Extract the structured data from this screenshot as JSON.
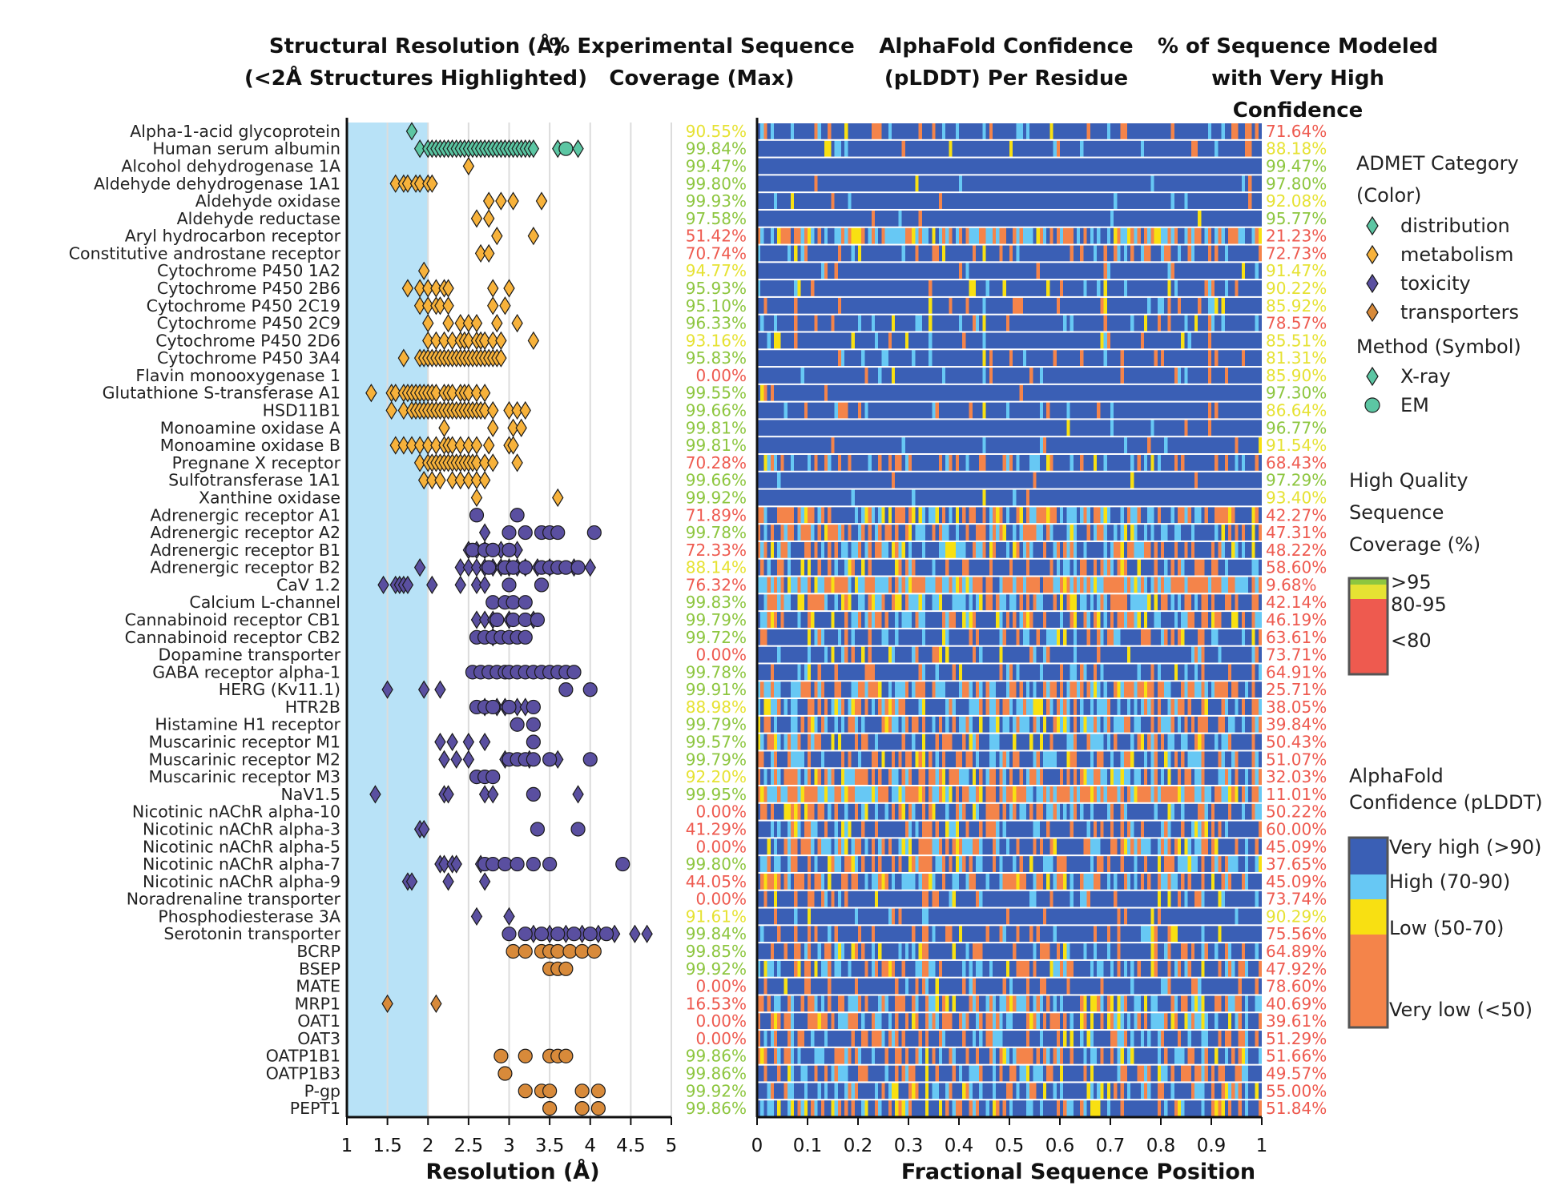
{
  "colors": {
    "distribution": "#5cc6a3",
    "metabolism": "#f7b23b",
    "toxicity": "#5a4fa0",
    "transporters": "#d88a3a",
    "very_high": "#3a5fb5",
    "high": "#67c8f4",
    "low": "#f8e012",
    "very_low": "#f4844a",
    "cov_high": "#8dc63f",
    "cov_mid": "#e6e233",
    "cov_low": "#ee5a4f",
    "highlight": "#b8e2f7"
  },
  "chart_data": [
    {
      "type": "scatter",
      "title": "Structural Resolution (Å)",
      "subtitle": "(<2Å Structures Highlighted)",
      "xlabel": "Resolution (Å)",
      "xlim": [
        1,
        5
      ],
      "xticks": [
        "1",
        "1.5",
        "2",
        "2.5",
        "3",
        "3.5",
        "4",
        "4.5",
        "5"
      ],
      "xtick_values": [
        1,
        1.5,
        2,
        2.5,
        3,
        3.5,
        4,
        4.5,
        5
      ],
      "highlight_range": [
        1,
        2
      ],
      "grid": true,
      "categories": [
        "Alpha-1-acid glycoprotein",
        "Human serum albumin",
        "Alcohol dehydrogenase 1A",
        "Aldehyde dehydrogenase 1A1",
        "Aldehyde oxidase",
        "Aldehyde reductase",
        "Aryl hydrocarbon receptor",
        "Constitutive androstane receptor",
        "Cytochrome P450 1A2",
        "Cytochrome P450 2B6",
        "Cytochrome P450 2C19",
        "Cytochrome P450 2C9",
        "Cytochrome P450 2D6",
        "Cytochrome P450 3A4",
        "Flavin monooxygenase 1",
        "Glutathione S-transferase A1",
        "HSD11B1",
        "Monoamine oxidase A",
        "Monoamine oxidase B",
        "Pregnane X receptor",
        "Sulfotransferase 1A1",
        "Xanthine oxidase",
        "Adrenergic receptor A1",
        "Adrenergic receptor A2",
        "Adrenergic receptor B1",
        "Adrenergic receptor B2",
        "CaV 1.2",
        "Calcium L-channel",
        "Cannabinoid receptor CB1",
        "Cannabinoid receptor CB2",
        "Dopamine transporter",
        "GABA receptor alpha-1",
        "HERG (Kv11.1)",
        "HTR2B",
        "Histamine H1 receptor",
        "Muscarinic receptor M1",
        "Muscarinic receptor M2",
        "Muscarinic receptor M3",
        "NaV1.5",
        "Nicotinic nAChR alpha-10",
        "Nicotinic nAChR alpha-3",
        "Nicotinic nAChR alpha-5",
        "Nicotinic nAChR alpha-7",
        "Nicotinic nAChR alpha-9",
        "Noradrenaline transporter",
        "Phosphodiesterase 3A",
        "Serotonin transporter",
        "BCRP",
        "BSEP",
        "MATE",
        "MRP1",
        "OAT1",
        "OAT3",
        "OATP1B1",
        "OATP1B3",
        "P-gp",
        "PEPT1"
      ],
      "admet_category": [
        "distribution",
        "distribution",
        "metabolism",
        "metabolism",
        "metabolism",
        "metabolism",
        "metabolism",
        "metabolism",
        "metabolism",
        "metabolism",
        "metabolism",
        "metabolism",
        "metabolism",
        "metabolism",
        "metabolism",
        "metabolism",
        "metabolism",
        "metabolism",
        "metabolism",
        "metabolism",
        "metabolism",
        "metabolism",
        "toxicity",
        "toxicity",
        "toxicity",
        "toxicity",
        "toxicity",
        "toxicity",
        "toxicity",
        "toxicity",
        "toxicity",
        "toxicity",
        "toxicity",
        "toxicity",
        "toxicity",
        "toxicity",
        "toxicity",
        "toxicity",
        "toxicity",
        "toxicity",
        "toxicity",
        "toxicity",
        "toxicity",
        "toxicity",
        "toxicity",
        "toxicity",
        "toxicity",
        "transporters",
        "transporters",
        "transporters",
        "transporters",
        "transporters",
        "transporters",
        "transporters",
        "transporters",
        "transporters",
        "transporters"
      ],
      "xray": [
        [
          1.8
        ],
        [
          1.9,
          2.0,
          2.05,
          2.1,
          2.15,
          2.2,
          2.25,
          2.3,
          2.35,
          2.4,
          2.45,
          2.5,
          2.55,
          2.6,
          2.65,
          2.7,
          2.75,
          2.8,
          2.85,
          2.9,
          2.95,
          3.0,
          3.05,
          3.1,
          3.15,
          3.2,
          3.25,
          3.3,
          3.6,
          3.85
        ],
        [
          2.5
        ],
        [
          1.6,
          1.7,
          1.75,
          1.85,
          1.9,
          2.0,
          2.05
        ],
        [
          2.75,
          2.9,
          3.05,
          3.4
        ],
        [
          2.6,
          2.75
        ],
        [
          2.85,
          3.3
        ],
        [
          2.65,
          2.75
        ],
        [
          1.95
        ],
        [
          1.75,
          1.9,
          2.0,
          2.1,
          2.2,
          2.25,
          2.8,
          3.0
        ],
        [
          1.9,
          2.0,
          2.1,
          2.15,
          2.25,
          2.8,
          2.95
        ],
        [
          2.0,
          2.25,
          2.4,
          2.5,
          2.6,
          2.85,
          3.1
        ],
        [
          2.0,
          2.1,
          2.2,
          2.3,
          2.4,
          2.45,
          2.5,
          2.6,
          2.65,
          2.7,
          2.8,
          2.9,
          3.3
        ],
        [
          1.7,
          1.9,
          1.95,
          2.0,
          2.05,
          2.1,
          2.15,
          2.2,
          2.25,
          2.3,
          2.35,
          2.4,
          2.45,
          2.5,
          2.55,
          2.6,
          2.65,
          2.7,
          2.75,
          2.8,
          2.85,
          2.9
        ],
        [],
        [
          1.3,
          1.55,
          1.6,
          1.7,
          1.75,
          1.8,
          1.85,
          1.9,
          1.95,
          2.0,
          2.05,
          2.1,
          2.2,
          2.25,
          2.3,
          2.4,
          2.45,
          2.5,
          2.6,
          2.7
        ],
        [
          1.55,
          1.7,
          1.8,
          1.85,
          1.9,
          1.95,
          2.0,
          2.05,
          2.1,
          2.15,
          2.2,
          2.25,
          2.3,
          2.35,
          2.4,
          2.45,
          2.5,
          2.55,
          2.6,
          2.65,
          2.7,
          2.8,
          3.0,
          3.1,
          3.2
        ],
        [
          2.2,
          2.8,
          3.05,
          3.15
        ],
        [
          1.6,
          1.7,
          1.8,
          1.9,
          2.0,
          2.1,
          2.2,
          2.25,
          2.3,
          2.4,
          2.5,
          2.6,
          2.75,
          3.0,
          3.05
        ],
        [
          1.9,
          2.0,
          2.05,
          2.1,
          2.15,
          2.2,
          2.25,
          2.3,
          2.35,
          2.4,
          2.45,
          2.5,
          2.55,
          2.6,
          2.7,
          2.8,
          3.1
        ],
        [
          1.95,
          2.05,
          2.15,
          2.3,
          2.4,
          2.5,
          2.6,
          2.7
        ],
        [
          2.6,
          3.6
        ],
        [],
        [
          2.7
        ],
        [
          2.5,
          2.6,
          2.7,
          2.9,
          3.1
        ],
        [
          1.9,
          2.4,
          2.5,
          2.6,
          2.7,
          2.8,
          2.9,
          3.0,
          3.1,
          3.2,
          3.35,
          3.5,
          3.8,
          4.0
        ],
        [
          1.45,
          1.6,
          1.65,
          1.7,
          1.75,
          2.05,
          2.4,
          2.6,
          2.7
        ],
        [],
        [
          2.6,
          2.7,
          2.8,
          3.0,
          3.3
        ],
        [
          2.8
        ],
        [],
        [],
        [
          1.5,
          1.95,
          2.15
        ],
        [
          2.7,
          2.85,
          2.95,
          3.1,
          3.2
        ],
        [],
        [
          2.15,
          2.3,
          2.5,
          2.7
        ],
        [
          2.2,
          2.35,
          2.5,
          2.95,
          3.25,
          3.6
        ],
        [],
        [
          1.35,
          2.2,
          2.25,
          2.7,
          2.8,
          3.85
        ],
        [],
        [
          1.9,
          1.95
        ],
        [],
        [
          2.15,
          2.2,
          2.3,
          2.35,
          2.65
        ],
        [
          1.75,
          1.8,
          2.25,
          2.7
        ],
        [],
        [
          2.6,
          3.0
        ],
        [
          3.3,
          3.5,
          3.7,
          3.9,
          4.1,
          4.3,
          4.55,
          4.7
        ],
        [],
        [],
        [],
        [
          1.5,
          2.1
        ],
        [],
        [],
        [],
        [],
        [],
        []
      ],
      "em": [
        [],
        [
          3.7
        ],
        [],
        [],
        [],
        [],
        [],
        [],
        [],
        [],
        [],
        [],
        [],
        [],
        [],
        [],
        [],
        [],
        [],
        [],
        [],
        [],
        [
          2.6,
          3.1
        ],
        [
          3.0,
          3.2,
          3.4,
          3.5,
          3.6,
          4.05
        ],
        [
          2.55,
          2.7,
          2.8,
          3.0
        ],
        [
          2.75,
          2.95,
          3.05,
          3.2,
          3.4,
          3.5,
          3.6,
          3.7,
          3.85
        ],
        [
          3.0,
          3.4
        ],
        [
          2.8,
          2.95,
          3.05,
          3.2
        ],
        [
          2.85,
          3.05,
          3.2,
          3.35
        ],
        [
          2.6,
          2.7,
          2.8,
          2.9,
          3.0,
          3.1,
          3.2
        ],
        [],
        [
          2.55,
          2.65,
          2.75,
          2.85,
          2.95,
          3.0,
          3.1,
          3.2,
          3.3,
          3.4,
          3.5,
          3.6,
          3.7,
          3.8
        ],
        [
          3.7,
          4.0
        ],
        [
          2.6,
          2.7,
          2.8,
          3.0,
          3.3
        ],
        [
          3.1,
          3.3
        ],
        [
          3.3
        ],
        [
          3.0,
          3.1,
          3.2,
          3.3,
          3.5,
          4.0
        ],
        [
          2.6,
          2.7,
          2.8
        ],
        [
          3.3
        ],
        [],
        [
          3.35,
          3.85
        ],
        [],
        [
          2.7,
          2.8,
          2.95,
          3.1,
          3.3,
          3.5,
          4.4
        ],
        [],
        [],
        [],
        [
          3.0,
          3.2,
          3.4,
          3.6,
          3.8,
          4.0,
          4.2
        ],
        [
          3.05,
          3.2,
          3.4,
          3.5,
          3.6,
          3.75,
          3.9,
          4.05
        ],
        [
          3.5,
          3.6,
          3.7
        ],
        [],
        [],
        [],
        [],
        [
          2.9,
          3.2,
          3.5,
          3.6,
          3.7
        ],
        [
          2.95
        ],
        [
          3.2,
          3.4,
          3.5,
          3.9,
          4.1
        ],
        [
          3.5,
          3.9,
          4.1
        ]
      ]
    },
    {
      "type": "table",
      "title": "% Experimental Sequence",
      "subtitle": "Coverage (Max)",
      "values": [
        "90.55%",
        "99.84%",
        "99.47%",
        "99.80%",
        "99.93%",
        "97.58%",
        "51.42%",
        "70.74%",
        "94.77%",
        "95.93%",
        "95.10%",
        "96.33%",
        "93.16%",
        "95.83%",
        "0.00%",
        "99.55%",
        "99.66%",
        "99.81%",
        "99.81%",
        "70.28%",
        "99.66%",
        "99.92%",
        "71.89%",
        "99.78%",
        "72.33%",
        "88.14%",
        "76.32%",
        "99.83%",
        "99.79%",
        "99.72%",
        "0.00%",
        "99.78%",
        "99.91%",
        "88.98%",
        "99.79%",
        "99.57%",
        "99.79%",
        "92.20%",
        "99.95%",
        "0.00%",
        "41.29%",
        "0.00%",
        "99.80%",
        "44.05%",
        "0.00%",
        "91.61%",
        "99.84%",
        "99.85%",
        "99.92%",
        "0.00%",
        "16.53%",
        "0.00%",
        "0.00%",
        "99.86%",
        "99.86%",
        "99.92%",
        "99.86%"
      ],
      "numeric": [
        90.55,
        99.84,
        99.47,
        99.8,
        99.93,
        97.58,
        51.42,
        70.74,
        94.77,
        95.93,
        95.1,
        96.33,
        93.16,
        95.83,
        0.0,
        99.55,
        99.66,
        99.81,
        99.81,
        70.28,
        99.66,
        99.92,
        71.89,
        99.78,
        72.33,
        88.14,
        76.32,
        99.83,
        99.79,
        99.72,
        0.0,
        99.78,
        99.91,
        88.98,
        99.79,
        99.57,
        99.79,
        92.2,
        99.95,
        0.0,
        41.29,
        0.0,
        99.8,
        44.05,
        0.0,
        91.61,
        99.84,
        99.85,
        99.92,
        0.0,
        16.53,
        0.0,
        0.0,
        99.86,
        99.86,
        99.92,
        99.86
      ]
    },
    {
      "type": "heatmap",
      "title": "AlphaFold Confidence",
      "subtitle": "(pLDDT) Per Residue",
      "xlabel": "Fractional Sequence Position",
      "xlim": [
        0,
        1
      ],
      "xticks": [
        "0",
        "0.1",
        "0.2",
        "0.3",
        "0.4",
        "0.5",
        "0.6",
        "0.7",
        "0.8",
        "0.9",
        "1"
      ],
      "xtick_values": [
        0,
        0.1,
        0.2,
        0.3,
        0.4,
        0.5,
        0.6,
        0.7,
        0.8,
        0.9,
        1
      ],
      "very_high_fraction": [
        0.7164,
        0.8818,
        0.9947,
        0.978,
        0.9208,
        0.9577,
        0.2123,
        0.7273,
        0.9147,
        0.9022,
        0.8592,
        0.7857,
        0.8551,
        0.8131,
        0.859,
        0.973,
        0.8664,
        0.9677,
        0.9154,
        0.6843,
        0.9729,
        0.934,
        0.4227,
        0.4731,
        0.4822,
        0.586,
        0.0968,
        0.4214,
        0.4619,
        0.6361,
        0.7371,
        0.6491,
        0.2571,
        0.3805,
        0.3984,
        0.5043,
        0.5107,
        0.3203,
        0.1101,
        0.5022,
        0.6,
        0.4509,
        0.3765,
        0.4509,
        0.7374,
        0.9029,
        0.7556,
        0.6489,
        0.4792,
        0.786,
        0.4069,
        0.3961,
        0.5129,
        0.5166,
        0.4957,
        0.55,
        0.5184
      ]
    },
    {
      "type": "table",
      "title": "% of Sequence Modeled",
      "subtitle": "with Very High",
      "subtitle2": "Confidence",
      "values": [
        "71.64%",
        "88.18%",
        "99.47%",
        "97.80%",
        "92.08%",
        "95.77%",
        "21.23%",
        "72.73%",
        "91.47%",
        "90.22%",
        "85.92%",
        "78.57%",
        "85.51%",
        "81.31%",
        "85.90%",
        "97.30%",
        "86.64%",
        "96.77%",
        "91.54%",
        "68.43%",
        "97.29%",
        "93.40%",
        "42.27%",
        "47.31%",
        "48.22%",
        "58.60%",
        "9.68%",
        "42.14%",
        "46.19%",
        "63.61%",
        "73.71%",
        "64.91%",
        "25.71%",
        "38.05%",
        "39.84%",
        "50.43%",
        "51.07%",
        "32.03%",
        "11.01%",
        "50.22%",
        "60.00%",
        "45.09%",
        "37.65%",
        "45.09%",
        "73.74%",
        "90.29%",
        "75.56%",
        "64.89%",
        "47.92%",
        "78.60%",
        "40.69%",
        "39.61%",
        "51.29%",
        "51.66%",
        "49.57%",
        "55.00%",
        "51.84%"
      ],
      "numeric": [
        71.64,
        88.18,
        99.47,
        97.8,
        92.08,
        95.77,
        21.23,
        72.73,
        91.47,
        90.22,
        85.92,
        78.57,
        85.51,
        81.31,
        85.9,
        97.3,
        86.64,
        96.77,
        91.54,
        68.43,
        97.29,
        93.4,
        42.27,
        47.31,
        48.22,
        58.6,
        9.68,
        42.14,
        46.19,
        63.61,
        73.71,
        64.91,
        25.71,
        38.05,
        39.84,
        50.43,
        51.07,
        32.03,
        11.01,
        50.22,
        60.0,
        45.09,
        37.65,
        45.09,
        73.74,
        90.29,
        75.56,
        64.89,
        47.92,
        78.6,
        40.69,
        39.61,
        51.29,
        51.66,
        49.57,
        55.0,
        51.84
      ]
    }
  ],
  "legend": {
    "admet_title_1": "ADMET Category",
    "admet_title_2": "(Color)",
    "categories": [
      {
        "key": "distribution",
        "label": "distribution"
      },
      {
        "key": "metabolism",
        "label": "metabolism"
      },
      {
        "key": "toxicity",
        "label": "toxicity"
      },
      {
        "key": "transporters",
        "label": "transporters"
      }
    ],
    "method_title": "Method (Symbol)",
    "methods": [
      {
        "key": "xray",
        "label": "X-ray",
        "shape": "diamond"
      },
      {
        "key": "em",
        "label": "EM",
        "shape": "circle"
      }
    ],
    "hq_title_1": "High Quality",
    "hq_title_2": "Sequence",
    "hq_title_3": "Coverage (%)",
    "hq_labels": [
      ">95",
      "80-95",
      "<80"
    ],
    "plddt_title_1": "AlphaFold",
    "plddt_title_2": "Confidence (pLDDT)",
    "plddt_labels": [
      "Very high (>90)",
      "High (70-90)",
      "Low (50-70)",
      "Very low (<50)"
    ]
  }
}
